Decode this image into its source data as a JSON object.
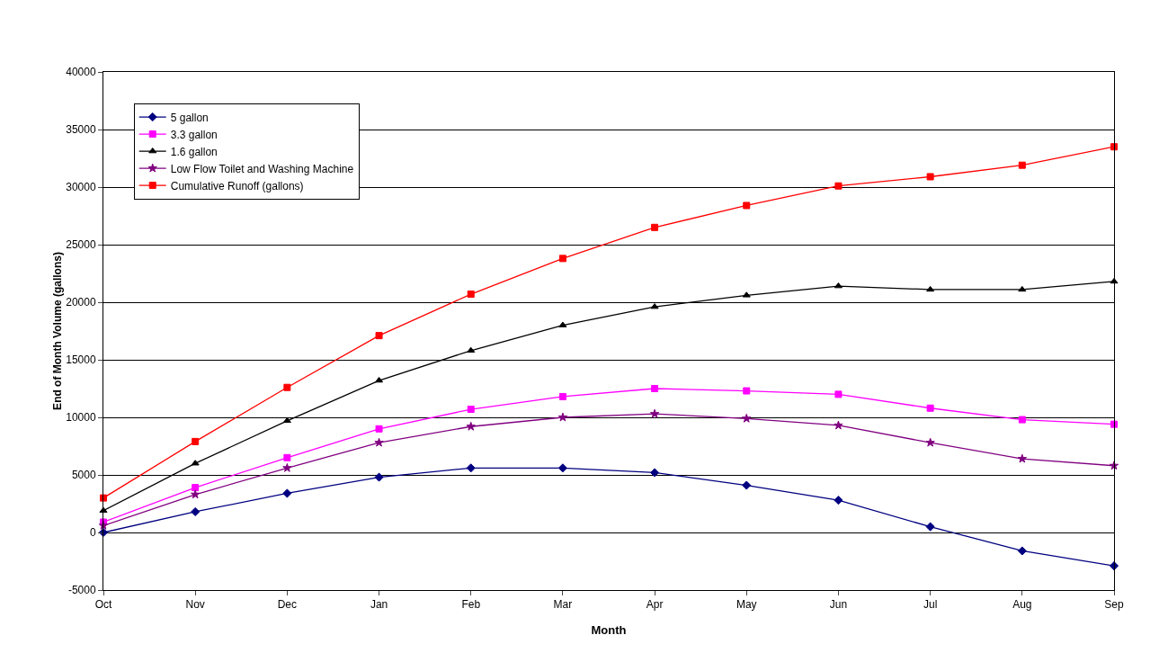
{
  "chart_data": {
    "type": "line",
    "xlabel": "Month",
    "ylabel": "End of Month Volume (gallons)",
    "categories": [
      "Oct",
      "Nov",
      "Dec",
      "Jan",
      "Feb",
      "Mar",
      "Apr",
      "May",
      "Jun",
      "Jul",
      "Aug",
      "Sep"
    ],
    "series": [
      {
        "name": "5 gallon",
        "color": "#000080",
        "marker": "diamond",
        "values": [
          0,
          1800,
          3400,
          4800,
          5600,
          5600,
          5200,
          4100,
          2800,
          500,
          -1600,
          -2900
        ]
      },
      {
        "name": "3.3 gallon",
        "color": "#ff00ff",
        "marker": "square",
        "values": [
          900,
          3900,
          6500,
          9000,
          10700,
          11800,
          12500,
          12300,
          12000,
          10800,
          9800,
          9400
        ]
      },
      {
        "name": "1.6 gallon",
        "color": "#000000",
        "marker": "triangle",
        "values": [
          1900,
          6000,
          9700,
          13200,
          15800,
          18000,
          19600,
          20600,
          21400,
          21100,
          21100,
          21800
        ]
      },
      {
        "name": "Low Flow Toilet and Washing Machine",
        "color": "#800080",
        "marker": "star",
        "values": [
          600,
          3300,
          5600,
          7800,
          9200,
          10000,
          10300,
          9900,
          9300,
          7800,
          6400,
          5800
        ]
      },
      {
        "name": "Cumulative Runoff (gallons)",
        "color": "#ff0000",
        "marker": "square",
        "values": [
          3000,
          7900,
          12600,
          17100,
          20700,
          23800,
          26500,
          28400,
          30100,
          30900,
          31900,
          33500
        ]
      }
    ],
    "ylim": [
      -5000,
      40000
    ],
    "yticks": [
      -5000,
      0,
      5000,
      10000,
      15000,
      20000,
      25000,
      30000,
      35000,
      40000
    ],
    "grid": "y",
    "legend": "top left",
    "line_style": "solid"
  }
}
